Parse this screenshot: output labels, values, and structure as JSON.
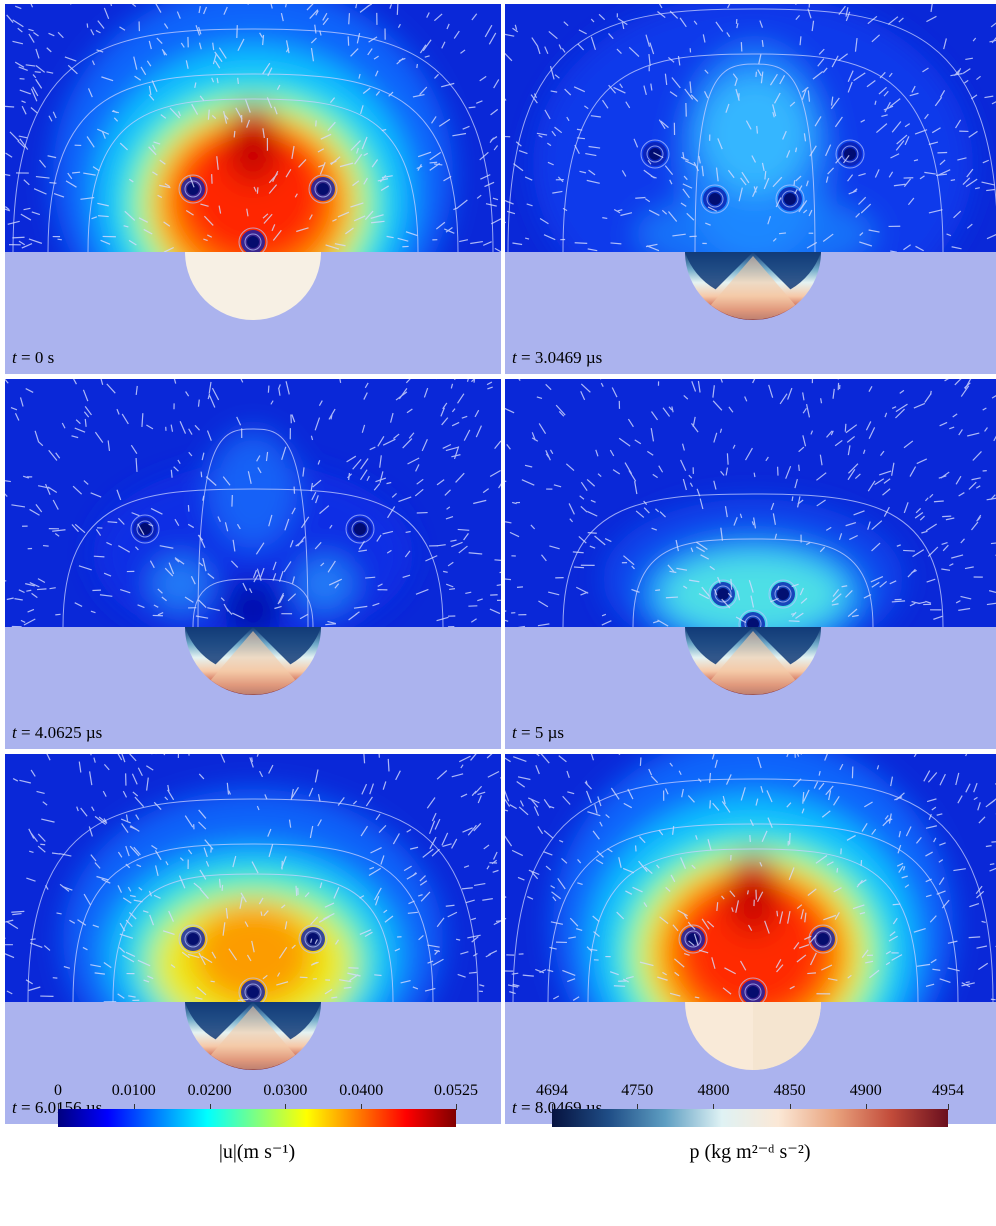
{
  "panels": [
    {
      "time_var": "t",
      "time_eq": "= 0 s",
      "state": "t0"
    },
    {
      "time_var": "t",
      "time_eq": "= 3.0469 µs",
      "state": "t1"
    },
    {
      "time_var": "t",
      "time_eq": "= 4.0625 µs",
      "state": "t2"
    },
    {
      "time_var": "t",
      "time_eq": "= 5 µs",
      "state": "t3"
    },
    {
      "time_var": "t",
      "time_eq": "= 6.0156 µs",
      "state": "t4"
    },
    {
      "time_var": "t",
      "time_eq": "= 8.0469 µs",
      "state": "t5"
    }
  ],
  "colorbars": {
    "velocity": {
      "ticks": [
        "0",
        "0.0100",
        "0.0200",
        "0.0300",
        "0.0400",
        "0.0525"
      ],
      "values": [
        0,
        0.01,
        0.02,
        0.03,
        0.04,
        0.0525
      ],
      "range": [
        0,
        0.0525
      ],
      "title": "|u|(m s⁻¹)",
      "colors": [
        "#00007f",
        "#0000ff",
        "#0080ff",
        "#00ffff",
        "#80ff80",
        "#ffff00",
        "#ff8000",
        "#ff0000",
        "#7f0000"
      ]
    },
    "pressure": {
      "ticks": [
        "4694",
        "4750",
        "4800",
        "4850",
        "4900",
        "4954"
      ],
      "values": [
        4694,
        4750,
        4800,
        4850,
        4900,
        4954
      ],
      "range": [
        4694,
        4954
      ],
      "title": "p (kg m²⁻ᵈ s⁻²)",
      "colors": [
        "#06123f",
        "#1f4d86",
        "#5e9ec2",
        "#dff2f4",
        "#fbe8d6",
        "#e9a37e",
        "#c24b3a",
        "#6a0f1e"
      ]
    }
  },
  "colors": {
    "solid_region": "#abb3ee",
    "background_field": "#0a28d8",
    "separator": "#ffffff"
  }
}
